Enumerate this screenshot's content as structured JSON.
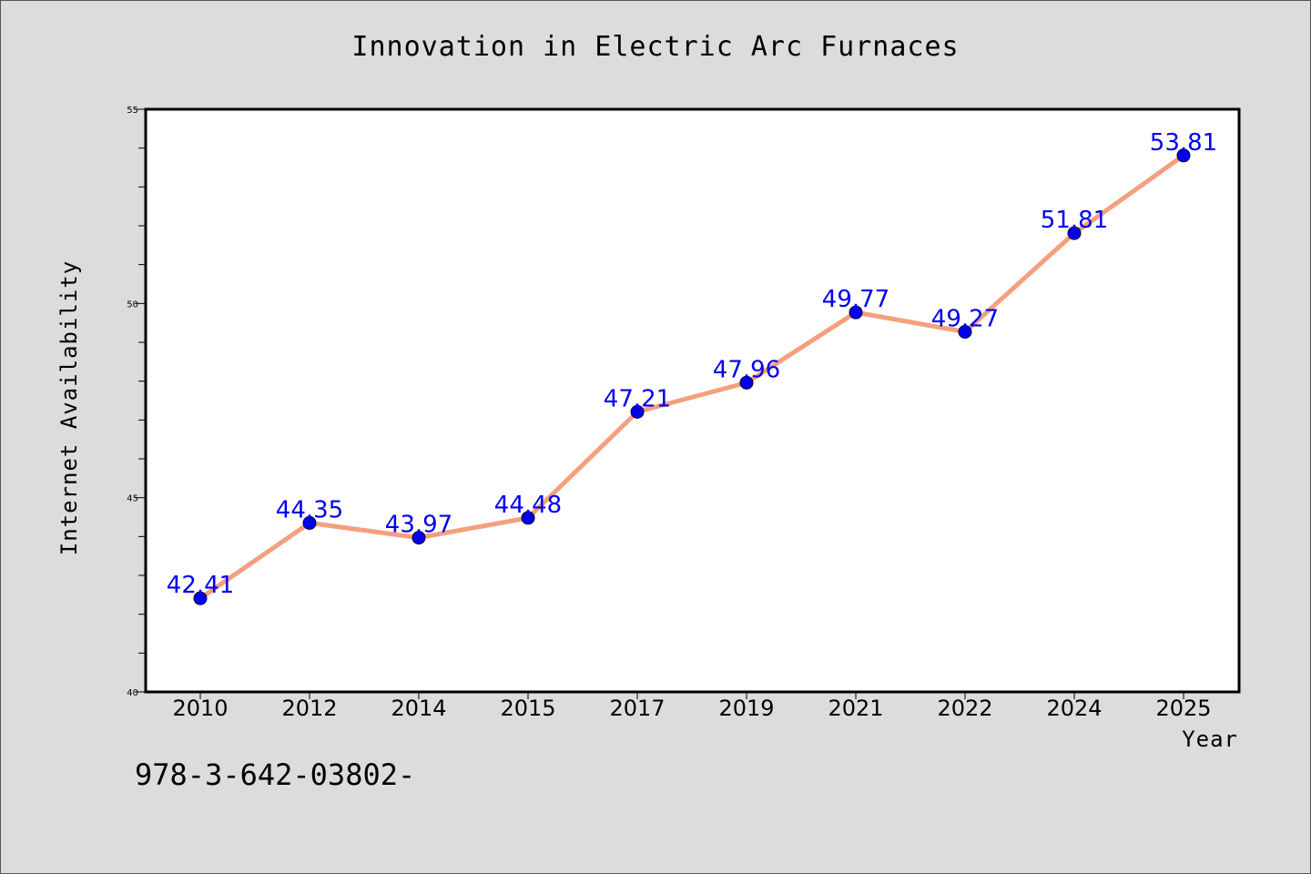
{
  "chart_data": {
    "type": "line",
    "title": "Innovation in Electric Arc Furnaces",
    "xlabel": "Year",
    "ylabel": "Internet Availability",
    "categories": [
      "2010",
      "2012",
      "2014",
      "2015",
      "2017",
      "2019",
      "2021",
      "2022",
      "2024",
      "2025"
    ],
    "series": [
      {
        "values": [
          42.41,
          44.35,
          43.97,
          44.48,
          47.21,
          47.96,
          49.77,
          49.27,
          51.81,
          53.81
        ],
        "data_labels": [
          "42.41",
          "44.35",
          "43.97",
          "44.48",
          "47.21",
          "47.96",
          "49.77",
          "49.27",
          "51.81",
          "53.81"
        ]
      }
    ],
    "ylim": [
      40,
      55
    ],
    "yticks": [
      40,
      45,
      50,
      55
    ],
    "grid": false,
    "line_color": "#f4a07e",
    "marker_color": "#0000ee",
    "label_color": "#0000ee"
  },
  "note_text": "978-3-642-03802-"
}
